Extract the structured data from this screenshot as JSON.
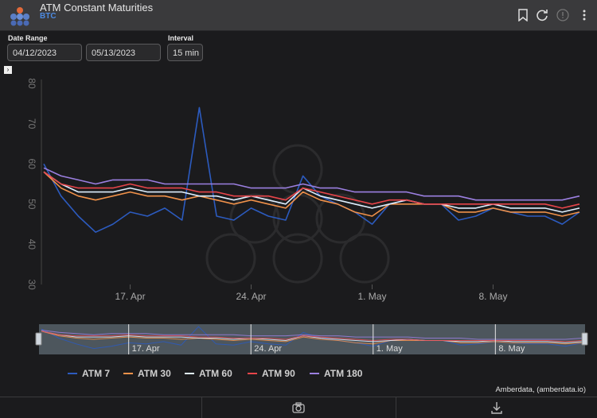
{
  "header": {
    "title": "ATM Constant Maturities",
    "subtitle": "BTC",
    "icons": [
      "bookmark-icon",
      "refresh-icon",
      "info-icon",
      "more-icon"
    ]
  },
  "controls": {
    "date_range_label": "Date Range",
    "start_date": "04/12/2023",
    "end_date": "05/13/2023",
    "interval_label": "Interval",
    "interval_value": "15 min"
  },
  "chart_data": {
    "type": "line",
    "x_range": [
      "2023-04-12",
      "2023-05-13"
    ],
    "x_ticks": [
      "17. Apr",
      "24. Apr",
      "1. May",
      "8. May"
    ],
    "y_ticks": [
      30,
      40,
      50,
      60,
      70,
      80
    ],
    "ylim": [
      30,
      80
    ],
    "grid": false,
    "legend_position": "bottom",
    "navigator_ticks": [
      "17. Apr",
      "24. Apr",
      "1. May",
      "8. May"
    ],
    "series": [
      {
        "name": "ATM 7",
        "color": "#2c5bbf",
        "x": [
          "2023-04-12",
          "2023-04-13",
          "2023-04-14",
          "2023-04-15",
          "2023-04-16",
          "2023-04-17",
          "2023-04-18",
          "2023-04-19",
          "2023-04-20",
          "2023-04-21",
          "2023-04-22",
          "2023-04-23",
          "2023-04-24",
          "2023-04-25",
          "2023-04-26",
          "2023-04-27",
          "2023-04-28",
          "2023-04-29",
          "2023-04-30",
          "2023-05-01",
          "2023-05-02",
          "2023-05-03",
          "2023-05-04",
          "2023-05-05",
          "2023-05-06",
          "2023-05-07",
          "2023-05-08",
          "2023-05-09",
          "2023-05-10",
          "2023-05-11",
          "2023-05-12",
          "2023-05-13"
        ],
        "values": [
          60,
          52,
          47,
          43,
          45,
          48,
          47,
          49,
          46,
          74,
          47,
          46,
          49,
          47,
          46,
          57,
          52,
          50,
          48,
          45,
          50,
          51,
          50,
          50,
          46,
          47,
          49,
          48,
          47,
          47,
          45,
          48
        ]
      },
      {
        "name": "ATM 30",
        "color": "#f0914a",
        "x": [
          "2023-04-12",
          "2023-04-13",
          "2023-04-14",
          "2023-04-15",
          "2023-04-16",
          "2023-04-17",
          "2023-04-18",
          "2023-04-19",
          "2023-04-20",
          "2023-04-21",
          "2023-04-22",
          "2023-04-23",
          "2023-04-24",
          "2023-04-25",
          "2023-04-26",
          "2023-04-27",
          "2023-04-28",
          "2023-04-29",
          "2023-04-30",
          "2023-05-01",
          "2023-05-02",
          "2023-05-03",
          "2023-05-04",
          "2023-05-05",
          "2023-05-06",
          "2023-05-07",
          "2023-05-08",
          "2023-05-09",
          "2023-05-10",
          "2023-05-11",
          "2023-05-12",
          "2023-05-13"
        ],
        "values": [
          58,
          54,
          52,
          51,
          52,
          53,
          52,
          52,
          51,
          52,
          51,
          50,
          51,
          50,
          49,
          53,
          51,
          50,
          48,
          47,
          50,
          50,
          50,
          50,
          48,
          48,
          49,
          48,
          48,
          48,
          47,
          48
        ]
      },
      {
        "name": "ATM 60",
        "color": "#dff0ff",
        "x": [
          "2023-04-12",
          "2023-04-13",
          "2023-04-14",
          "2023-04-15",
          "2023-04-16",
          "2023-04-17",
          "2023-04-18",
          "2023-04-19",
          "2023-04-20",
          "2023-04-21",
          "2023-04-22",
          "2023-04-23",
          "2023-04-24",
          "2023-04-25",
          "2023-04-26",
          "2023-04-27",
          "2023-04-28",
          "2023-04-29",
          "2023-04-30",
          "2023-05-01",
          "2023-05-02",
          "2023-05-03",
          "2023-05-04",
          "2023-05-05",
          "2023-05-06",
          "2023-05-07",
          "2023-05-08",
          "2023-05-09",
          "2023-05-10",
          "2023-05-11",
          "2023-05-12",
          "2023-05-13"
        ],
        "values": [
          58,
          55,
          53,
          53,
          53,
          54,
          53,
          53,
          53,
          52,
          52,
          51,
          52,
          51,
          50,
          54,
          52,
          51,
          50,
          49,
          50,
          51,
          50,
          50,
          49,
          49,
          50,
          49,
          49,
          49,
          48,
          49
        ]
      },
      {
        "name": "ATM 90",
        "color": "#e8454a",
        "x": [
          "2023-04-12",
          "2023-04-13",
          "2023-04-14",
          "2023-04-15",
          "2023-04-16",
          "2023-04-17",
          "2023-04-18",
          "2023-04-19",
          "2023-04-20",
          "2023-04-21",
          "2023-04-22",
          "2023-04-23",
          "2023-04-24",
          "2023-04-25",
          "2023-04-26",
          "2023-04-27",
          "2023-04-28",
          "2023-04-29",
          "2023-04-30",
          "2023-05-01",
          "2023-05-02",
          "2023-05-03",
          "2023-05-04",
          "2023-05-05",
          "2023-05-06",
          "2023-05-07",
          "2023-05-08",
          "2023-05-09",
          "2023-05-10",
          "2023-05-11",
          "2023-05-12",
          "2023-05-13"
        ],
        "values": [
          58,
          55,
          54,
          54,
          54,
          55,
          54,
          54,
          54,
          53,
          53,
          52,
          52,
          52,
          51,
          54,
          53,
          52,
          51,
          50,
          51,
          51,
          50,
          50,
          50,
          50,
          50,
          50,
          50,
          50,
          49,
          50
        ]
      },
      {
        "name": "ATM 180",
        "color": "#9b7fe0",
        "x": [
          "2023-04-12",
          "2023-04-13",
          "2023-04-14",
          "2023-04-15",
          "2023-04-16",
          "2023-04-17",
          "2023-04-18",
          "2023-04-19",
          "2023-04-20",
          "2023-04-21",
          "2023-04-22",
          "2023-04-23",
          "2023-04-24",
          "2023-04-25",
          "2023-04-26",
          "2023-04-27",
          "2023-04-28",
          "2023-04-29",
          "2023-04-30",
          "2023-05-01",
          "2023-05-02",
          "2023-05-03",
          "2023-05-04",
          "2023-05-05",
          "2023-05-06",
          "2023-05-07",
          "2023-05-08",
          "2023-05-09",
          "2023-05-10",
          "2023-05-11",
          "2023-05-12",
          "2023-05-13"
        ],
        "values": [
          59,
          57,
          56,
          55,
          56,
          56,
          56,
          55,
          55,
          55,
          55,
          55,
          54,
          54,
          54,
          55,
          54,
          54,
          53,
          53,
          53,
          53,
          52,
          52,
          52,
          51,
          51,
          51,
          51,
          51,
          51,
          52
        ]
      }
    ]
  },
  "credits": "Amberdata, (amberdata.io)",
  "footer": {
    "icons": [
      "camera-icon",
      "download-icon"
    ]
  }
}
